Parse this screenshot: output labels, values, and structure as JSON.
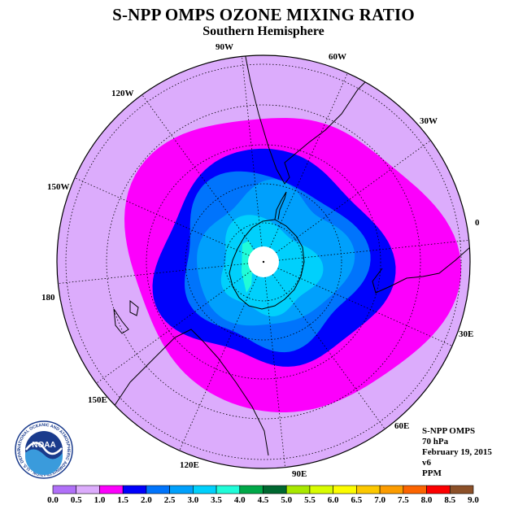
{
  "header": {
    "title": "S-NPP OMPS OZONE MIXING RATIO",
    "subtitle": "Southern Hemisphere"
  },
  "map": {
    "projection": "south-polar-stereographic",
    "longitude_labels": [
      "90W",
      "60W",
      "30W",
      "0",
      "30E",
      "60E",
      "90E",
      "120E",
      "150E",
      "180",
      "150W",
      "120W"
    ],
    "colors": {
      "background": "#dcacfc",
      "ring_1_0_1_5": "#fc00fc",
      "ring_1_5_2_0": "#0000fc",
      "ring_2_0_2_5": "#0074fc",
      "ring_2_5_3_0": "#00a0fc",
      "ring_3_0_3_5": "#00d0fc",
      "ring_3_5_4_0": "#20fcd8",
      "pole_mask": "#ffffff"
    }
  },
  "logo": {
    "text": "NOAA",
    "ring_text": "NATIONAL OCEANIC AND ATMOSPHERIC ADMINISTRATION · U.S. DEPARTMENT OF COMMERCE"
  },
  "info": {
    "instrument": "S-NPP OMPS",
    "level": "70 hPa",
    "date": "February 19, 2015",
    "version": "v6",
    "units": "PPM"
  },
  "colorbar": {
    "labels": [
      "0.0",
      "0.5",
      "1.0",
      "1.5",
      "2.0",
      "2.5",
      "3.0",
      "3.5",
      "4.0",
      "4.5",
      "5.0",
      "5.5",
      "6.0",
      "6.5",
      "7.0",
      "7.5",
      "8.0",
      "8.5",
      "9.0"
    ],
    "colors": [
      "#b070f8",
      "#dcacfc",
      "#fc00fc",
      "#0000fc",
      "#0074fc",
      "#00a0fc",
      "#00d0fc",
      "#20fcd8",
      "#00a848",
      "#006830",
      "#a8e800",
      "#d8fc00",
      "#fcfc00",
      "#fcc800",
      "#fc9c00",
      "#fc6400",
      "#fc0000",
      "#8c5028"
    ]
  }
}
